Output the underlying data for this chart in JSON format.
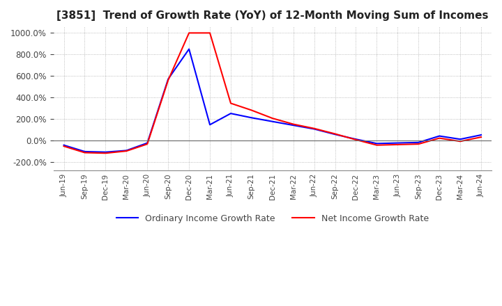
{
  "title": "[3851]  Trend of Growth Rate (YoY) of 12-Month Moving Sum of Incomes",
  "title_fontsize": 11,
  "legend_labels": [
    "Ordinary Income Growth Rate",
    "Net Income Growth Rate"
  ],
  "line_colors": [
    "blue",
    "red"
  ],
  "ylim": [
    -280,
    1060
  ],
  "yticks": [
    -200,
    0,
    200,
    400,
    600,
    800,
    1000
  ],
  "background_color": "#ffffff",
  "plot_bg_color": "#ffffff",
  "grid_color": "#aaaaaa",
  "x_labels": [
    "Jun-19",
    "Sep-19",
    "Dec-19",
    "Mar-20",
    "Jun-20",
    "Sep-20",
    "Dec-20",
    "Mar-21",
    "Jun-21",
    "Sep-21",
    "Dec-21",
    "Mar-22",
    "Jun-22",
    "Sep-22",
    "Dec-22",
    "Mar-23",
    "Jun-23",
    "Sep-23",
    "Dec-23",
    "Mar-24",
    "Jun-24"
  ],
  "ordinary_income": [
    -45,
    -105,
    -110,
    -95,
    -25,
    570,
    850,
    145,
    250,
    210,
    175,
    140,
    105,
    55,
    10,
    -30,
    -25,
    -20,
    40,
    10,
    50
  ],
  "net_income": [
    -55,
    -115,
    -120,
    -100,
    -35,
    560,
    1000,
    1000,
    345,
    280,
    205,
    150,
    110,
    60,
    5,
    -45,
    -40,
    -35,
    20,
    -10,
    30
  ]
}
